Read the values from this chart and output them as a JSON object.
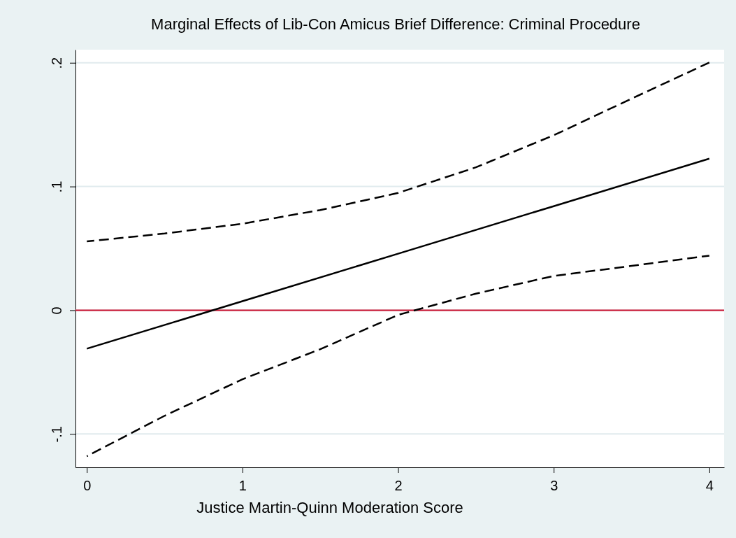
{
  "chart_data": {
    "type": "line",
    "title": "Marginal Effects of Lib-Con Amicus Brief Difference: Criminal Procedure",
    "xlabel": "Justice Martin-Quinn Moderation Score",
    "series": [
      {
        "color": "#000000",
        "line_style": "dashed",
        "x": [
          0,
          0.5,
          1,
          1.5,
          2,
          2.5,
          3,
          3.5,
          4
        ],
        "values": [
          0.0556,
          0.062,
          0.0699,
          0.081,
          0.0948,
          0.1155,
          0.1414,
          0.171,
          0.2002
        ]
      },
      {
        "color": "#000000",
        "line_style": "solid",
        "x": [
          0,
          1,
          2,
          3,
          4
        ],
        "values": [
          -0.0311,
          0.0073,
          0.0457,
          0.0841,
          0.1225
        ]
      },
      {
        "color": "#000000",
        "line_style": "dashed",
        "x": [
          0,
          0.5,
          1,
          1.5,
          2,
          2.5,
          3,
          3.5,
          4
        ],
        "values": [
          -0.118,
          -0.0853,
          -0.0558,
          -0.0315,
          -0.0038,
          0.0134,
          0.0277,
          0.0358,
          0.0441
        ]
      }
    ],
    "xlim": [
      -0.073,
      4.095
    ],
    "ylim": [
      -0.127,
      0.2106
    ],
    "xticks": [
      0,
      1,
      2,
      3,
      4
    ],
    "yticks": [
      {
        "value": -0.1,
        "label": "-.1"
      },
      0,
      {
        "value": 0.1,
        "label": ".1"
      },
      {
        "value": 0.2,
        "label": ".2"
      }
    ],
    "grid": "y",
    "ref_lines": [
      {
        "axis": "y",
        "value": 0,
        "color": "#c8102e"
      }
    ]
  }
}
